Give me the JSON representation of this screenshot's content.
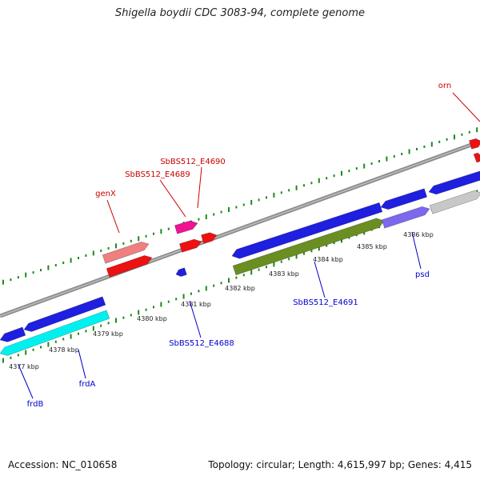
{
  "title": "Shigella boydii CDC 3083-94, complete genome",
  "footer": {
    "accession": "Accession: NC_010658",
    "summary": "Topology: circular; Length: 4,615,997 bp; Genes: 4,415"
  },
  "colors": {
    "backbone": "#8c8c8c",
    "tick": "#1a8a1a",
    "forward_gene_label": "#cc0000",
    "reverse_gene_label": "#0000cc",
    "blue": "#1f1fe0",
    "red": "#ee1111",
    "salmon": "#ee8080",
    "magenta": "#ee1493",
    "cyan": "#00f0f0",
    "olive": "#6b8e23",
    "slate": "#7b68ee",
    "gray": "#c8c8c8"
  },
  "kbp_ticks": [
    "4377 kbp",
    "4378 kbp",
    "4379 kbp",
    "4380 kbp",
    "4381 kbp",
    "4382 kbp",
    "4383 kbp",
    "4384 kbp",
    "4385 kbp",
    "4386 kbp"
  ],
  "gene_labels": [
    {
      "id": "orn",
      "text": "orn",
      "strand": "forward"
    },
    {
      "id": "SbBS512_E4690",
      "text": "SbBS512_E4690",
      "strand": "forward"
    },
    {
      "id": "SbBS512_E4689",
      "text": "SbBS512_E4689",
      "strand": "forward"
    },
    {
      "id": "genX",
      "text": "genX",
      "strand": "forward"
    },
    {
      "id": "SbBS512_E4691",
      "text": "SbBS512_E4691",
      "strand": "reverse"
    },
    {
      "id": "psd",
      "text": "psd",
      "strand": "reverse"
    },
    {
      "id": "SbBS512_E4688",
      "text": "SbBS512_E4688",
      "strand": "reverse"
    },
    {
      "id": "frdA",
      "text": "frdA",
      "strand": "reverse"
    },
    {
      "id": "frdB",
      "text": "frdB",
      "strand": "reverse"
    }
  ]
}
